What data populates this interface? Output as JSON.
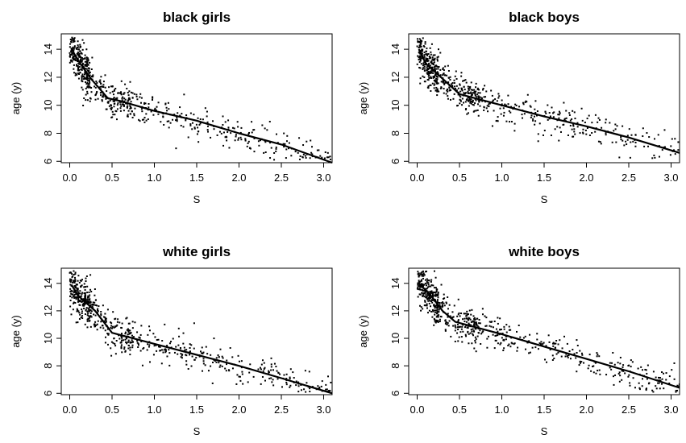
{
  "chart_data": [
    {
      "type": "scatter",
      "title": "black girls",
      "xlabel": "S",
      "ylabel": "age (y)",
      "xlim": [
        -0.1,
        3.1
      ],
      "ylim": [
        5.9,
        15.1
      ],
      "xticks": [
        "0.0",
        "0.5",
        "1.0",
        "1.5",
        "2.0",
        "2.5",
        "3.0"
      ],
      "yticks": [
        "6",
        "8",
        "10",
        "12",
        "14"
      ],
      "grid": false,
      "point_count": 650,
      "series": [
        {
          "kind": "fit-line",
          "points": [
            [
              0.02,
              14.0
            ],
            [
              0.1,
              13.2
            ],
            [
              0.25,
              11.9
            ],
            [
              0.45,
              10.5
            ],
            [
              0.6,
              10.3
            ],
            [
              1.0,
              9.6
            ],
            [
              1.5,
              8.9
            ],
            [
              2.0,
              8.0
            ],
            [
              2.5,
              7.2
            ],
            [
              3.1,
              5.9
            ]
          ]
        }
      ]
    },
    {
      "type": "scatter",
      "title": "black boys",
      "xlabel": "S",
      "ylabel": "age (y)",
      "xlim": [
        -0.1,
        3.1
      ],
      "ylim": [
        5.9,
        15.1
      ],
      "xticks": [
        "0.0",
        "0.5",
        "1.0",
        "1.5",
        "2.0",
        "2.5",
        "3.0"
      ],
      "yticks": [
        "6",
        "8",
        "10",
        "12",
        "14"
      ],
      "grid": false,
      "point_count": 650,
      "series": [
        {
          "kind": "fit-line",
          "points": [
            [
              0.02,
              14.0
            ],
            [
              0.1,
              13.0
            ],
            [
              0.3,
              11.9
            ],
            [
              0.5,
              10.8
            ],
            [
              1.0,
              10.0
            ],
            [
              1.5,
              9.2
            ],
            [
              2.0,
              8.5
            ],
            [
              2.5,
              7.7
            ],
            [
              3.1,
              6.6
            ]
          ]
        }
      ]
    },
    {
      "type": "scatter",
      "title": "white girls",
      "xlabel": "S",
      "ylabel": "age (y)",
      "xlim": [
        -0.1,
        3.1
      ],
      "ylim": [
        5.9,
        15.1
      ],
      "xticks": [
        "0.0",
        "0.5",
        "1.0",
        "1.5",
        "2.0",
        "2.5",
        "3.0"
      ],
      "yticks": [
        "6",
        "8",
        "10",
        "12",
        "14"
      ],
      "grid": false,
      "point_count": 650,
      "series": [
        {
          "kind": "fit-line",
          "points": [
            [
              0.02,
              13.9
            ],
            [
              0.1,
              13.1
            ],
            [
              0.3,
              12.0
            ],
            [
              0.5,
              10.4
            ],
            [
              1.0,
              9.6
            ],
            [
              1.5,
              8.8
            ],
            [
              2.0,
              8.0
            ],
            [
              2.5,
              7.1
            ],
            [
              3.1,
              6.0
            ]
          ]
        }
      ]
    },
    {
      "type": "scatter",
      "title": "white boys",
      "xlabel": "S",
      "ylabel": "age (y)",
      "xlim": [
        -0.1,
        3.1
      ],
      "ylim": [
        5.9,
        15.1
      ],
      "xticks": [
        "0.0",
        "0.5",
        "1.0",
        "1.5",
        "2.0",
        "2.5",
        "3.0"
      ],
      "yticks": [
        "6",
        "8",
        "10",
        "12",
        "14"
      ],
      "grid": false,
      "point_count": 650,
      "series": [
        {
          "kind": "fit-line",
          "points": [
            [
              0.02,
              14.0
            ],
            [
              0.15,
              13.2
            ],
            [
              0.3,
              12.0
            ],
            [
              0.45,
              11.2
            ],
            [
              1.0,
              10.3
            ],
            [
              1.5,
              9.4
            ],
            [
              2.0,
              8.5
            ],
            [
              2.5,
              7.6
            ],
            [
              3.1,
              6.4
            ]
          ]
        }
      ]
    }
  ]
}
